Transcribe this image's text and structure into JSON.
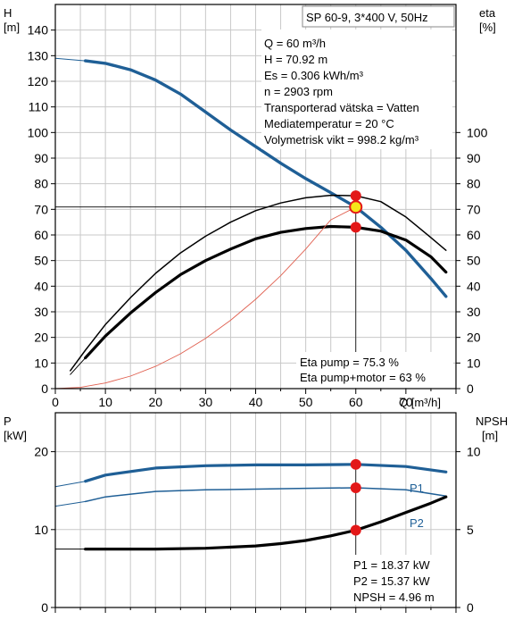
{
  "colors": {
    "head": "#1f5f96",
    "efficiency": "#000000",
    "system_curve": "#e06050",
    "power": "#1f5f96",
    "npsh": "#000000",
    "marker": "#e31818",
    "marker_highlight": "#f5e61a",
    "grid": "#c8c8c8",
    "frame": "#000000"
  },
  "chart_data": [
    {
      "type": "line",
      "title": "SP 60-9, 3*400 V, 50Hz",
      "left_axis": {
        "label": "H",
        "unit": "[m]",
        "ylim": [
          0,
          150
        ],
        "ticks": [
          "0",
          "10",
          "20",
          "30",
          "40",
          "50",
          "60",
          "70",
          "80",
          "90",
          "100",
          "110",
          "120",
          "130",
          "140"
        ]
      },
      "right_axis": {
        "label": "eta",
        "unit": "[%]",
        "ylim": [
          0,
          150
        ],
        "ticks": [
          "0",
          "10",
          "20",
          "30",
          "40",
          "50",
          "60",
          "70",
          "80",
          "90",
          "100"
        ]
      },
      "x_axis": {
        "label": "Q [m³/h]",
        "xlim": [
          0,
          80
        ],
        "ticks": [
          "0",
          "10",
          "20",
          "30",
          "40",
          "50",
          "60",
          "70"
        ]
      },
      "grid": true,
      "info": [
        "Q = 60 m³/h",
        "H = 70.92 m",
        "Es = 0.306 kWh/m³",
        "n = 2903 rpm",
        "Transporterad vätska = Vatten",
        "Mediatemperatur = 20 °C",
        "Volymetrisk vikt = 998.2 kg/m³"
      ],
      "results": [
        "Eta pump = 75.3 %",
        "Eta pump+motor = 63 %"
      ],
      "series": [
        {
          "axis": "left",
          "style": "head-thin",
          "x": [
            0,
            6
          ],
          "y": [
            129,
            128
          ]
        },
        {
          "axis": "left",
          "style": "head",
          "x": [
            6,
            10,
            15,
            20,
            25,
            30,
            35,
            40,
            45,
            50,
            55,
            60,
            65,
            70,
            75,
            78
          ],
          "y": [
            128,
            127,
            124.5,
            120.5,
            115,
            108,
            101,
            94.5,
            88,
            82,
            76.5,
            70.9,
            63,
            54,
            43,
            36
          ]
        },
        {
          "axis": "right",
          "style": "eta-pump",
          "x": [
            3,
            6,
            10,
            15,
            20,
            25,
            30,
            35,
            40,
            45,
            50,
            55,
            60,
            65,
            70,
            75,
            78
          ],
          "y": [
            7,
            15,
            25,
            35.5,
            45,
            53,
            59.5,
            65,
            69.5,
            72.5,
            74.5,
            75.5,
            75.3,
            73,
            67,
            59,
            54
          ]
        },
        {
          "axis": "right",
          "style": "eta-total-thin",
          "x": [
            3,
            6
          ],
          "y": [
            5.5,
            12
          ]
        },
        {
          "axis": "right",
          "style": "eta-total",
          "x": [
            6,
            10,
            15,
            20,
            25,
            30,
            35,
            40,
            45,
            50,
            55,
            60,
            65,
            70,
            75,
            78
          ],
          "y": [
            12,
            20.5,
            29.5,
            37.5,
            44.5,
            50,
            54.5,
            58.5,
            61,
            62.5,
            63.3,
            63,
            61.5,
            58,
            51.5,
            45.5
          ]
        },
        {
          "axis": "left",
          "style": "system-curve",
          "x": [
            0,
            5,
            10,
            15,
            20,
            25,
            30,
            35,
            40,
            45,
            50,
            55,
            60
          ],
          "y": [
            0,
            0.5,
            2.2,
            4.9,
            8.7,
            13.6,
            19.6,
            26.7,
            34.9,
            44.1,
            54.5,
            65.9,
            70.9
          ]
        }
      ],
      "duty_point": {
        "x": 60,
        "head": 70.92,
        "eta_pump": 75.3,
        "eta_total": 63
      }
    },
    {
      "type": "line",
      "left_axis": {
        "label": "P",
        "unit": "[kW]",
        "ylim": [
          0,
          25
        ],
        "ticks": [
          "0",
          "10",
          "20"
        ]
      },
      "right_axis": {
        "label": "NPSH",
        "unit": "[m]",
        "ylim": [
          0,
          12.5
        ],
        "ticks": [
          "0",
          "5",
          "10"
        ]
      },
      "x_axis": {
        "xlim": [
          0,
          80
        ]
      },
      "grid": true,
      "results": [
        "P1 = 18.37 kW",
        "P2 = 15.37 kW",
        "NPSH = 4.96 m"
      ],
      "series": [
        {
          "name": "P1",
          "axis": "left",
          "style": "p1",
          "x": [
            6,
            10,
            20,
            30,
            40,
            50,
            60,
            70,
            78
          ],
          "y": [
            16.2,
            17.0,
            17.9,
            18.2,
            18.3,
            18.3,
            18.37,
            18.1,
            17.4
          ]
        },
        {
          "axis": "left",
          "style": "p1-thin",
          "x": [
            0,
            6
          ],
          "y": [
            15.5,
            16.2
          ]
        },
        {
          "name": "P2",
          "axis": "left",
          "style": "p2",
          "x": [
            6,
            10,
            20,
            30,
            40,
            50,
            60,
            70,
            78
          ],
          "y": [
            13.6,
            14.2,
            14.9,
            15.1,
            15.2,
            15.3,
            15.37,
            15.1,
            14.3
          ]
        },
        {
          "axis": "left",
          "style": "p2-thin",
          "x": [
            0,
            6
          ],
          "y": [
            13.0,
            13.6
          ]
        },
        {
          "axis": "right",
          "style": "npsh-thin",
          "x": [
            0,
            6
          ],
          "y": [
            3.75,
            3.75
          ]
        },
        {
          "axis": "right",
          "style": "npsh",
          "x": [
            6,
            20,
            30,
            40,
            45,
            50,
            55,
            60,
            65,
            70,
            75,
            78
          ],
          "y": [
            3.75,
            3.75,
            3.8,
            3.95,
            4.1,
            4.3,
            4.6,
            4.96,
            5.5,
            6.1,
            6.7,
            7.1
          ]
        }
      ],
      "duty_point": {
        "x": 60,
        "p1": 18.37,
        "p2": 15.37,
        "npsh": 4.96
      }
    }
  ]
}
